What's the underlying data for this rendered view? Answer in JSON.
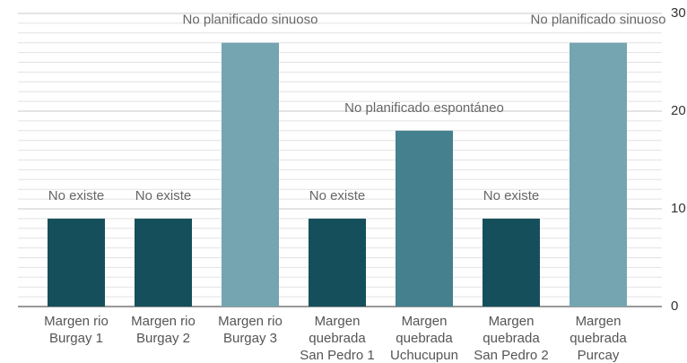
{
  "chart_data": {
    "type": "bar",
    "categories": [
      [
        "Margen rio",
        "Burgay 1"
      ],
      [
        "Margen rio",
        "Burgay 2"
      ],
      [
        "Margen rio",
        "Burgay 3"
      ],
      [
        "Margen",
        "quebrada",
        "San Pedro 1"
      ],
      [
        "Margen",
        "quebrada",
        "Uchucupun"
      ],
      [
        "Margen",
        "quebrada",
        "San Pedro 2"
      ],
      [
        "Margen",
        "quebrada",
        "Purcay"
      ]
    ],
    "values": [
      9,
      9,
      27,
      9,
      18,
      9,
      27
    ],
    "annotations": [
      "No existe",
      "No existe",
      "No planificado sinuoso",
      "No existe",
      "No planificado espontáneo",
      "No existe",
      "No planificado sinuoso"
    ],
    "colors": [
      "#164f5c",
      "#164f5c",
      "#74a5b0",
      "#164f5c",
      "#44808e",
      "#164f5c",
      "#74a5b0"
    ],
    "ylim": [
      0,
      30
    ],
    "yticks": [
      0,
      10,
      20,
      30
    ],
    "y_axis_side": "right",
    "grid": true,
    "minor_grid": true
  }
}
